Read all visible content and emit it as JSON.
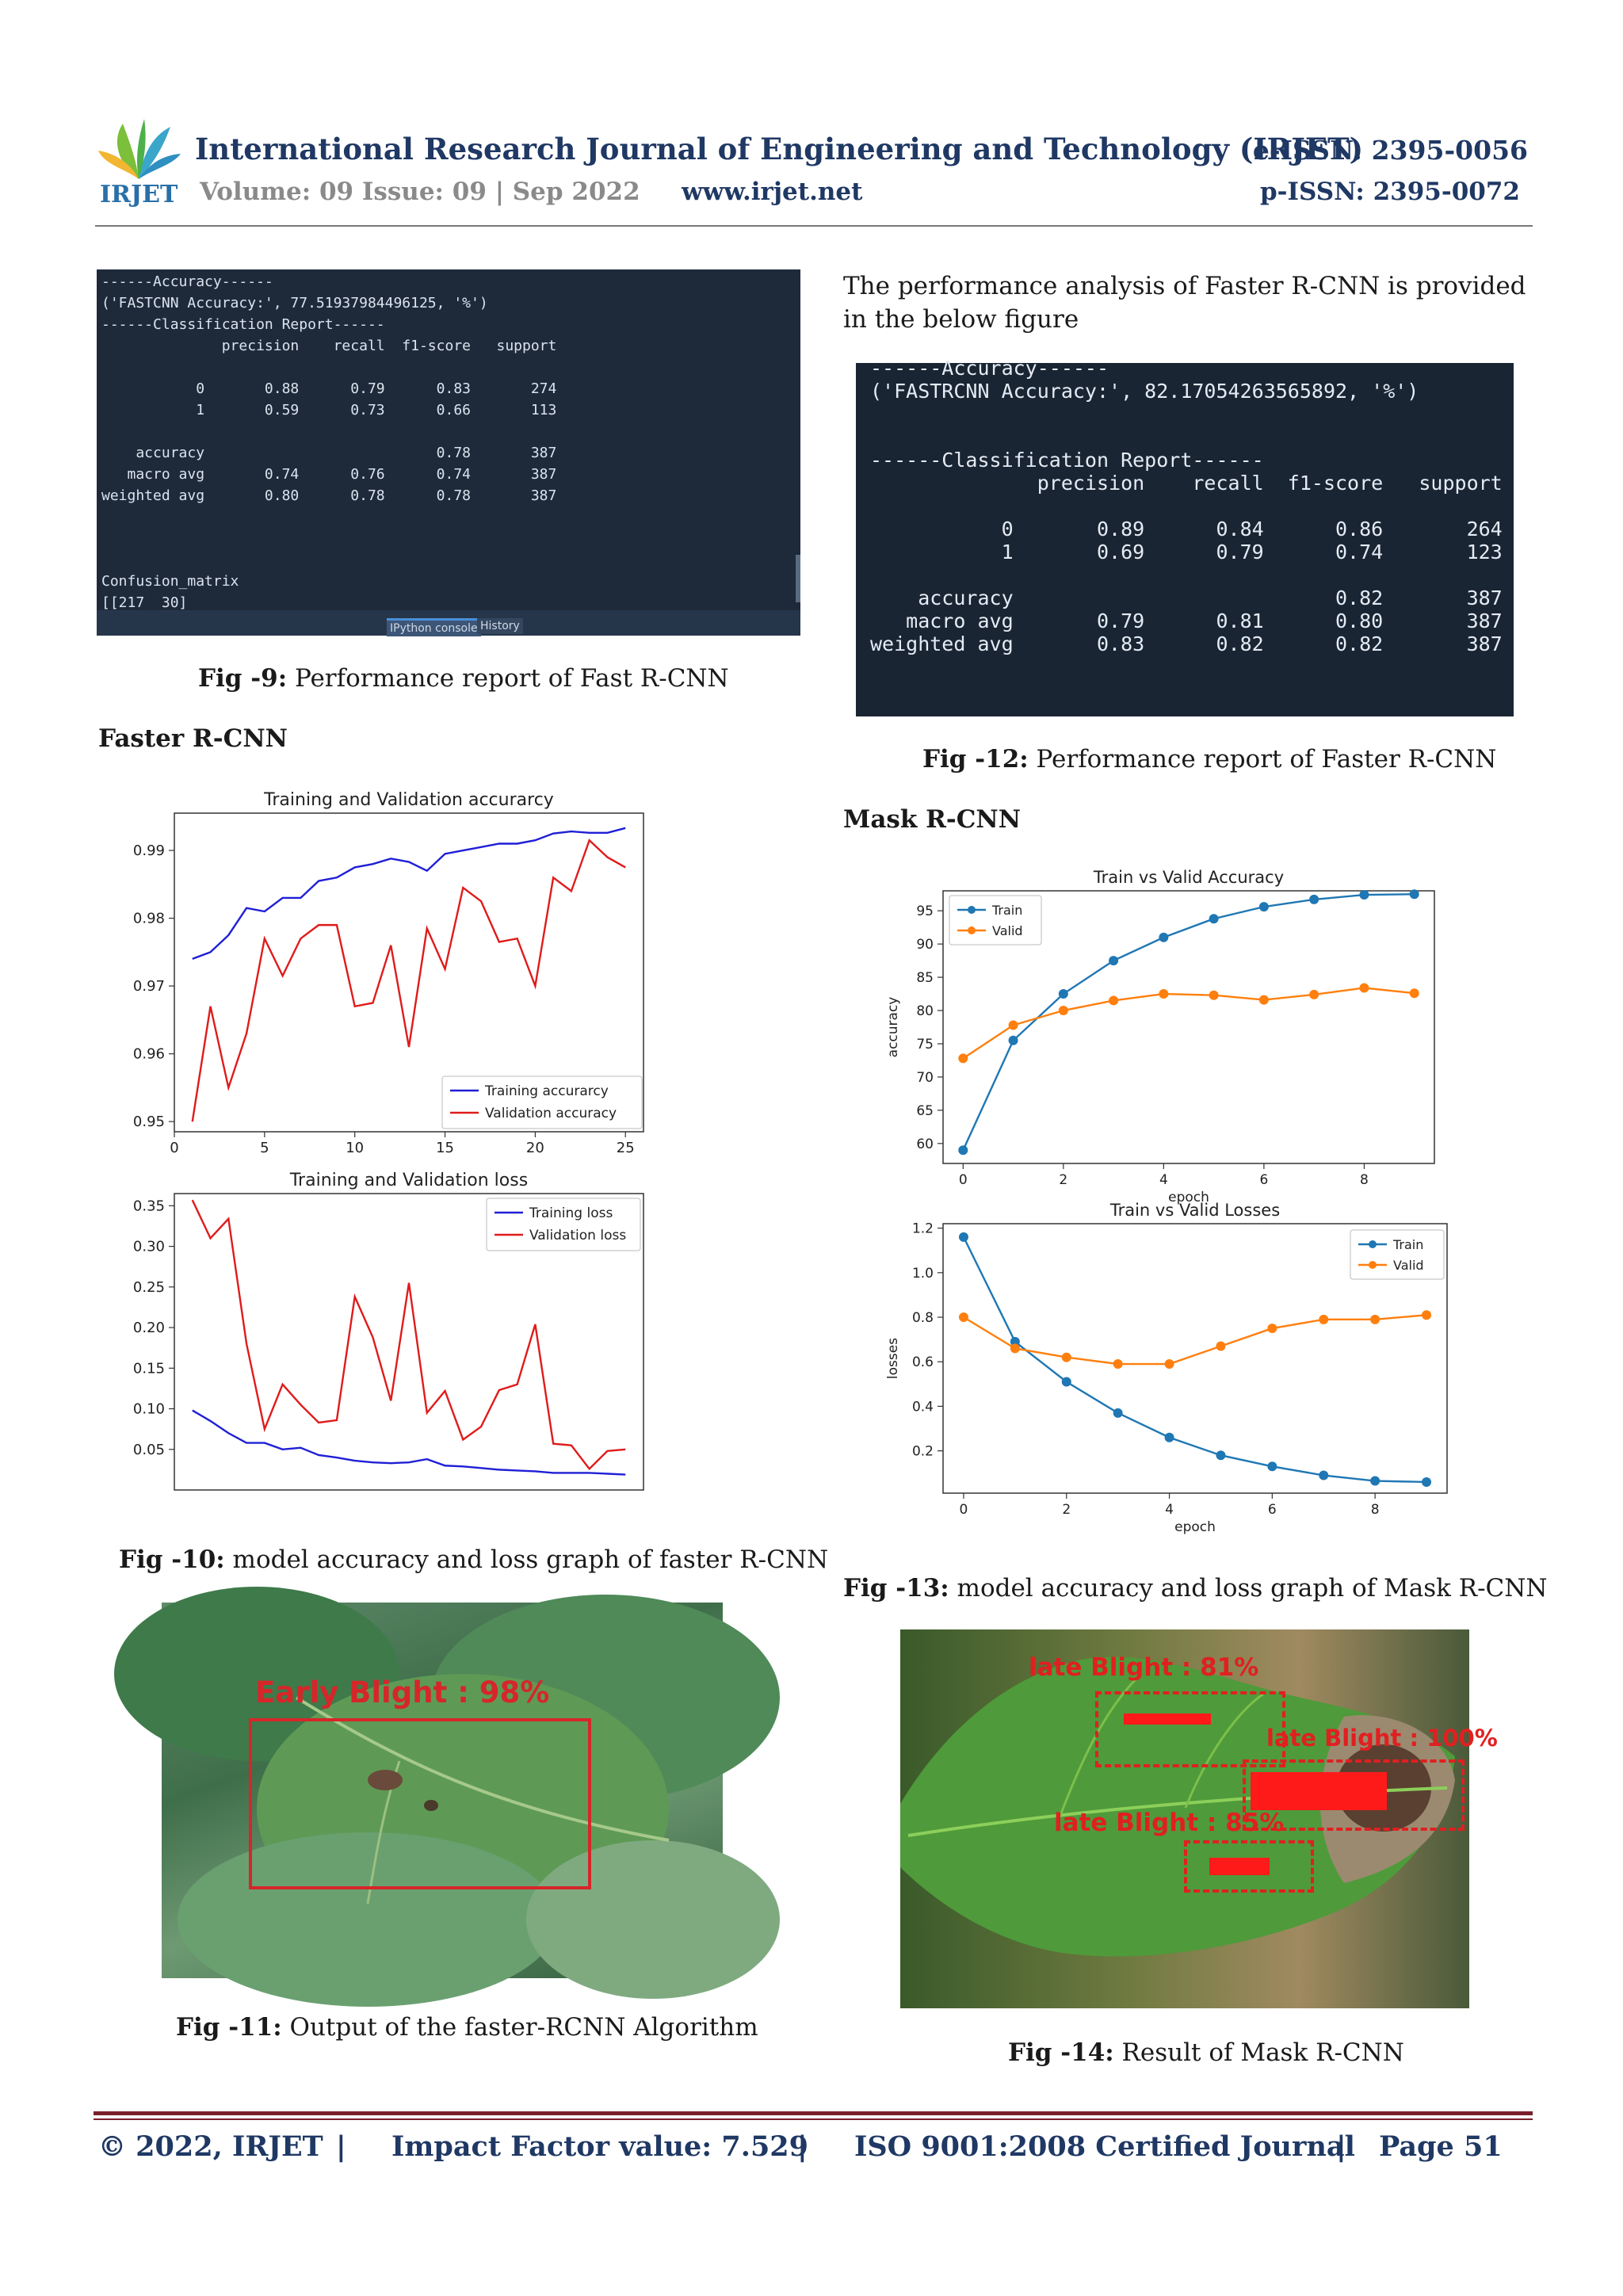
{
  "header": {
    "journal_title": "International Research Journal of Engineering and Technology (IRJET)",
    "eissn": "e-ISSN: 2395-0056",
    "volume": "Volume: 09 Issue: 09 | Sep 2022",
    "website": "www.irjet.net",
    "pissn": "p-ISSN: 2395-0072",
    "logo_text": "IRJET"
  },
  "fig9": {
    "console_lines": [
      "------Accuracy------",
      "('FASTCNN Accuracy:', 77.51937984496125, '%')",
      "------Classification Report------",
      "              precision    recall  f1-score   support",
      "",
      "           0       0.88      0.79      0.83       274",
      "           1       0.59      0.73      0.66       113",
      "",
      "    accuracy                           0.78       387",
      "   macro avg       0.74      0.76      0.74       387",
      "weighted avg       0.80      0.78      0.78       387",
      "",
      "",
      "",
      "Confusion_matrix",
      "[[217  30]"
    ],
    "tab1": "IPython console",
    "tab2": "History",
    "caption_label": "Fig -9:",
    "caption_text": " Performance report of Fast R-CNN"
  },
  "section_faster": "Faster R-CNN",
  "para_right": "The performance analysis of Faster  R-CNN is provided in the below figure",
  "fig12": {
    "console_lines": [
      "------Accuracy------",
      "('FASTRCNN Accuracy:', 82.17054263565892, '%')",
      "",
      "",
      "------Classification Report------",
      "              precision    recall  f1-score   support",
      "",
      "           0       0.89      0.84      0.86       264",
      "           1       0.69      0.79      0.74       123",
      "",
      "    accuracy                           0.82       387",
      "   macro avg       0.79      0.81      0.80       387",
      "weighted avg       0.83      0.82      0.82       387"
    ],
    "caption_label": "Fig -12:",
    "caption_text": " Performance report of Faster R-CNN"
  },
  "section_mask": "Mask R-CNN",
  "fig10": {
    "caption_label": "Fig -10:",
    "caption_text": " model accuracy and loss graph of faster R-CNN"
  },
  "fig11": {
    "detection_label": "Early Blight : 98%",
    "caption_label": "Fig -11:",
    "caption_text": " Output of the faster-RCNN Algorithm"
  },
  "fig13": {
    "caption_label": "Fig -13:",
    "caption_text": " model accuracy and loss graph of Mask R-CNN"
  },
  "fig14": {
    "labels": [
      "late Blight : 81%",
      "late Blight : 100%",
      "late Blight : 85%"
    ],
    "caption_label": "Fig -14:",
    "caption_text": " Result of Mask R-CNN"
  },
  "footer": {
    "copyright": "© 2022, IRJET",
    "sep": "|",
    "impact": "Impact Factor value: 7.529",
    "iso": "ISO 9001:2008 Certified Journal",
    "page": "Page 51"
  },
  "colors": {
    "journal_blue": "#1f3864",
    "train_blue": "#1f1fd6",
    "valid_red": "#e01b1b",
    "mpl_blue": "#1f77b4",
    "mpl_orange": "#ff7f0e",
    "footer_rule": "#7a1f2b"
  },
  "chart_data": [
    {
      "type": "line",
      "title": "Training and Validation accurarcy",
      "xlabel": "",
      "ylabel": "",
      "xlim": [
        0,
        26
      ],
      "ylim": [
        0.9485,
        0.9955
      ],
      "xticks": [
        0,
        5,
        10,
        15,
        20,
        25
      ],
      "yticks": [
        0.95,
        0.96,
        0.97,
        0.98,
        0.99
      ],
      "legend": "lower-right",
      "x": [
        1,
        2,
        3,
        4,
        5,
        6,
        7,
        8,
        9,
        10,
        11,
        12,
        13,
        14,
        15,
        16,
        17,
        18,
        19,
        20,
        21,
        22,
        23,
        24,
        25
      ],
      "series": [
        {
          "name": "Training accurarcy",
          "values": [
            0.974,
            0.975,
            0.9775,
            0.9815,
            0.981,
            0.983,
            0.983,
            0.9855,
            0.986,
            0.9875,
            0.988,
            0.9888,
            0.9883,
            0.987,
            0.9895,
            0.99,
            0.9905,
            0.991,
            0.991,
            0.9915,
            0.9925,
            0.9928,
            0.9926,
            0.9926,
            0.9933
          ]
        },
        {
          "name": "Validation accuracy",
          "values": [
            0.95,
            0.967,
            0.955,
            0.963,
            0.977,
            0.9715,
            0.977,
            0.979,
            0.979,
            0.967,
            0.9675,
            0.976,
            0.961,
            0.9785,
            0.9725,
            0.9845,
            0.9825,
            0.9765,
            0.977,
            0.97,
            0.986,
            0.984,
            0.9915,
            0.989,
            0.9875
          ]
        }
      ]
    },
    {
      "type": "line",
      "title": "Training and Validation loss",
      "xlabel": "",
      "ylabel": "",
      "xlim": [
        0,
        26
      ],
      "ylim": [
        0.0,
        0.365
      ],
      "yticks": [
        0.05,
        0.1,
        0.15,
        0.2,
        0.25,
        0.3,
        0.35
      ],
      "legend": "top-right",
      "x": [
        1,
        2,
        3,
        4,
        5,
        6,
        7,
        8,
        9,
        10,
        11,
        12,
        13,
        14,
        15,
        16,
        17,
        18,
        19,
        20,
        21,
        22,
        23,
        24,
        25
      ],
      "series": [
        {
          "name": "Training loss",
          "values": [
            0.098,
            0.085,
            0.07,
            0.058,
            0.058,
            0.05,
            0.052,
            0.043,
            0.04,
            0.036,
            0.034,
            0.033,
            0.034,
            0.038,
            0.03,
            0.029,
            0.027,
            0.025,
            0.024,
            0.023,
            0.021,
            0.021,
            0.021,
            0.02,
            0.019
          ]
        },
        {
          "name": "Validation loss",
          "values": [
            0.357,
            0.31,
            0.334,
            0.18,
            0.075,
            0.13,
            0.105,
            0.083,
            0.086,
            0.238,
            0.188,
            0.11,
            0.255,
            0.095,
            0.122,
            0.062,
            0.078,
            0.123,
            0.13,
            0.204,
            0.057,
            0.055,
            0.026,
            0.048,
            0.05
          ]
        }
      ]
    },
    {
      "type": "line",
      "title": "Train vs Valid Accuracy",
      "xlabel": "epoch",
      "ylabel": "accuracy",
      "xlim": [
        -0.4,
        9.4
      ],
      "ylim": [
        57,
        98
      ],
      "xticks": [
        0,
        2,
        4,
        6,
        8
      ],
      "yticks": [
        60,
        65,
        70,
        75,
        80,
        85,
        90,
        95
      ],
      "legend": "top-left",
      "x": [
        0,
        1,
        2,
        3,
        4,
        5,
        6,
        7,
        8,
        9
      ],
      "series": [
        {
          "name": "Train",
          "values": [
            59,
            75.5,
            82.5,
            87.5,
            91,
            93.8,
            95.6,
            96.7,
            97.4,
            97.5
          ]
        },
        {
          "name": "Valid",
          "values": [
            72.8,
            77.8,
            80,
            81.5,
            82.5,
            82.3,
            81.6,
            82.4,
            83.4,
            82.6
          ]
        }
      ]
    },
    {
      "type": "line",
      "title": "Train vs Valid Losses",
      "xlabel": "epoch",
      "ylabel": "losses",
      "xlim": [
        -0.4,
        9.4
      ],
      "ylim": [
        0.01,
        1.22
      ],
      "xticks": [
        0,
        2,
        4,
        6,
        8
      ],
      "yticks": [
        0.2,
        0.4,
        0.6,
        0.8,
        1.0,
        1.2
      ],
      "legend": "top-right",
      "x": [
        0,
        1,
        2,
        3,
        4,
        5,
        6,
        7,
        8,
        9
      ],
      "series": [
        {
          "name": "Train",
          "values": [
            1.16,
            0.69,
            0.51,
            0.37,
            0.26,
            0.18,
            0.13,
            0.09,
            0.065,
            0.06
          ]
        },
        {
          "name": "Valid",
          "values": [
            0.8,
            0.66,
            0.62,
            0.59,
            0.59,
            0.67,
            0.75,
            0.79,
            0.79,
            0.81
          ]
        }
      ]
    }
  ]
}
